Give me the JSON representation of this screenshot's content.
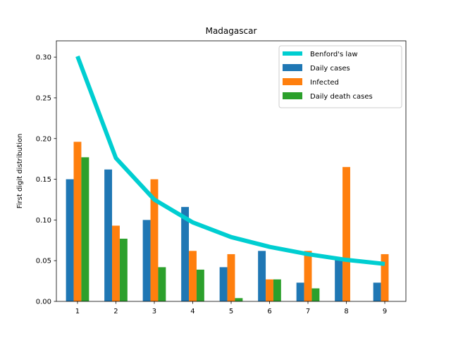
{
  "chart_data": {
    "type": "bar",
    "title": "Madagascar",
    "xlabel": "",
    "ylabel": "First digit distribution",
    "categories": [
      "1",
      "2",
      "3",
      "4",
      "5",
      "6",
      "7",
      "8",
      "9"
    ],
    "ylim": [
      0,
      0.32
    ],
    "yticks": [
      "0.00",
      "0.05",
      "0.10",
      "0.15",
      "0.20",
      "0.25",
      "0.30"
    ],
    "grid": false,
    "legend_position": "top-right",
    "line_series": {
      "name": "Benford's law",
      "color": "#00CED1",
      "values": [
        0.301,
        0.176,
        0.125,
        0.097,
        0.079,
        0.067,
        0.058,
        0.051,
        0.046
      ]
    },
    "series": [
      {
        "name": "Daily cases",
        "color": "#1f77b4",
        "values": [
          0.15,
          0.162,
          0.1,
          0.116,
          0.042,
          0.062,
          0.023,
          0.054,
          0.023
        ]
      },
      {
        "name": "Infected",
        "color": "#ff7f0e",
        "values": [
          0.196,
          0.093,
          0.15,
          0.062,
          0.058,
          0.027,
          0.062,
          0.165,
          0.058
        ]
      },
      {
        "name": "Daily death cases",
        "color": "#2ca02c",
        "values": [
          0.177,
          0.077,
          0.042,
          0.039,
          0.004,
          0.027,
          0.016,
          0.0,
          0.0
        ]
      }
    ]
  }
}
